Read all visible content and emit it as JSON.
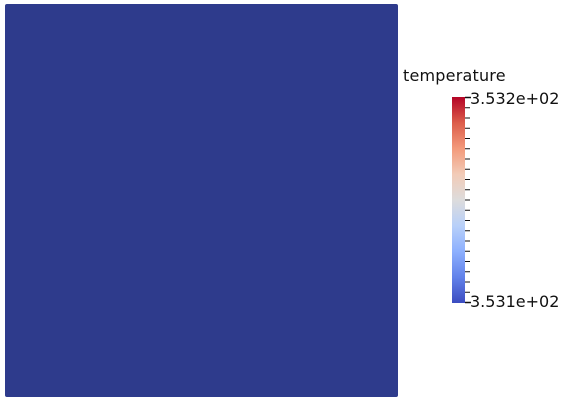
{
  "legend": {
    "title": "temperature",
    "max_label": "3.532e+02",
    "min_label": "3.531e+02",
    "tick_count": 21,
    "colormap": [
      "#b40426",
      "#dc5d4a",
      "#f39a7b",
      "#f2cbb7",
      "#dddcdc",
      "#b8d0f9",
      "#8db0fe",
      "#6282ea",
      "#3b4cc0"
    ]
  },
  "field": {
    "color": "#2e3b8c"
  }
}
